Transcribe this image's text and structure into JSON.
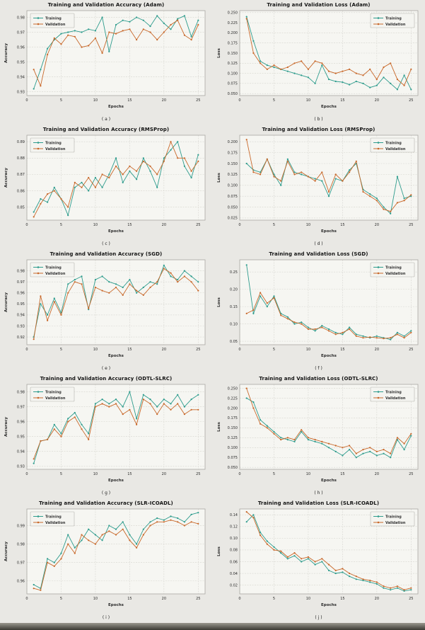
{
  "page": {
    "background": "#e9e8e4"
  },
  "colors": {
    "training": "#2e9c8d",
    "validation": "#c8682a",
    "grid": "#d7d6d0",
    "plot_bg": "#f6f6f2",
    "border": "#a9a8a2",
    "text": "#2b2b2b",
    "legend_bg": "#f4f4f0",
    "legend_border": "#b5b4ae"
  },
  "legend": {
    "training_label": "Training",
    "validation_label": "Validation"
  },
  "chart_data": [
    {
      "type": "line",
      "caption_id": "a",
      "caption": "( a )",
      "title": "Training and Validation Accuracy (Adam)",
      "xlabel": "Epochs",
      "ylabel": "Accuracy",
      "legend_position": "left",
      "xlim": [
        0,
        26
      ],
      "xticks": [
        0,
        5,
        10,
        15,
        20,
        25
      ],
      "ylim": [
        0.9275,
        0.9845
      ],
      "yticks": [
        0.93,
        0.94,
        0.95,
        0.96,
        0.97,
        0.98
      ],
      "ydecimals": 2,
      "series": [
        {
          "name": "Training",
          "color_key": "training",
          "values": [
            0.932,
            0.945,
            0.959,
            0.965,
            0.969,
            0.97,
            0.971,
            0.97,
            0.972,
            0.971,
            0.98,
            0.957,
            0.975,
            0.978,
            0.977,
            0.98,
            0.978,
            0.974,
            0.981,
            0.976,
            0.972,
            0.979,
            0.981,
            0.967,
            0.978
          ]
        },
        {
          "name": "Validation",
          "color_key": "validation",
          "values": [
            0.945,
            0.934,
            0.955,
            0.966,
            0.962,
            0.968,
            0.967,
            0.96,
            0.961,
            0.966,
            0.956,
            0.97,
            0.969,
            0.971,
            0.972,
            0.965,
            0.972,
            0.97,
            0.965,
            0.97,
            0.975,
            0.978,
            0.968,
            0.965,
            0.975
          ]
        }
      ]
    },
    {
      "type": "line",
      "caption_id": "b",
      "caption": "( b )",
      "title": "Training and Validation Loss (Adam)",
      "xlabel": "Epochs",
      "ylabel": "Loss",
      "legend_position": "right",
      "xlim": [
        0,
        26
      ],
      "xticks": [
        0,
        5,
        10,
        15,
        20,
        25
      ],
      "ylim": [
        0.045,
        0.255
      ],
      "yticks": [
        0.05,
        0.075,
        0.1,
        0.125,
        0.15,
        0.175,
        0.2,
        0.225,
        0.25
      ],
      "ydecimals": 3,
      "series": [
        {
          "name": "Training",
          "color_key": "training",
          "values": [
            0.24,
            0.18,
            0.13,
            0.12,
            0.115,
            0.11,
            0.105,
            0.1,
            0.095,
            0.09,
            0.075,
            0.12,
            0.085,
            0.08,
            0.078,
            0.072,
            0.08,
            0.075,
            0.065,
            0.07,
            0.09,
            0.075,
            0.06,
            0.095,
            0.06
          ]
        },
        {
          "name": "Validation",
          "color_key": "validation",
          "values": [
            0.235,
            0.15,
            0.125,
            0.11,
            0.12,
            0.11,
            0.115,
            0.125,
            0.13,
            0.11,
            0.13,
            0.125,
            0.105,
            0.1,
            0.105,
            0.11,
            0.1,
            0.095,
            0.11,
            0.085,
            0.115,
            0.125,
            0.085,
            0.07,
            0.11
          ]
        }
      ]
    },
    {
      "type": "line",
      "caption_id": "c",
      "caption": "( c )",
      "title": "Training and Validation Accuracy (RMSProp)",
      "xlabel": "Epochs",
      "ylabel": "Accuracy",
      "legend_position": "left",
      "xlim": [
        0,
        26
      ],
      "xticks": [
        0,
        5,
        10,
        15,
        20,
        25
      ],
      "ylim": [
        0.842,
        0.894
      ],
      "yticks": [
        0.85,
        0.86,
        0.87,
        0.88,
        0.89
      ],
      "ydecimals": 2,
      "series": [
        {
          "name": "Training",
          "color_key": "training",
          "values": [
            0.847,
            0.855,
            0.853,
            0.862,
            0.855,
            0.845,
            0.862,
            0.865,
            0.86,
            0.868,
            0.862,
            0.87,
            0.88,
            0.865,
            0.872,
            0.867,
            0.88,
            0.872,
            0.862,
            0.88,
            0.885,
            0.89,
            0.875,
            0.868,
            0.882
          ]
        },
        {
          "name": "Validation",
          "color_key": "validation",
          "values": [
            0.844,
            0.852,
            0.858,
            0.86,
            0.855,
            0.85,
            0.865,
            0.862,
            0.868,
            0.862,
            0.87,
            0.868,
            0.875,
            0.87,
            0.875,
            0.872,
            0.878,
            0.875,
            0.87,
            0.878,
            0.89,
            0.88,
            0.88,
            0.872,
            0.878
          ]
        }
      ]
    },
    {
      "type": "line",
      "caption_id": "d",
      "caption": "( d )",
      "title": "Training and Validation Loss (RMSProp)",
      "xlabel": "Epochs",
      "ylabel": "Loss",
      "legend_position": "right",
      "xlim": [
        0,
        26
      ],
      "xticks": [
        0,
        5,
        10,
        15,
        20,
        25
      ],
      "ylim": [
        0.02,
        0.215
      ],
      "yticks": [
        0.025,
        0.05,
        0.075,
        0.1,
        0.125,
        0.15,
        0.175,
        0.2
      ],
      "ydecimals": 3,
      "series": [
        {
          "name": "Training",
          "color_key": "training",
          "values": [
            0.15,
            0.135,
            0.13,
            0.16,
            0.125,
            0.1,
            0.16,
            0.13,
            0.125,
            0.12,
            0.115,
            0.11,
            0.075,
            0.115,
            0.11,
            0.135,
            0.15,
            0.09,
            0.08,
            0.07,
            0.05,
            0.035,
            0.12,
            0.07,
            0.075
          ]
        },
        {
          "name": "Validation",
          "color_key": "validation",
          "values": [
            0.205,
            0.13,
            0.125,
            0.16,
            0.12,
            0.11,
            0.155,
            0.125,
            0.13,
            0.12,
            0.11,
            0.13,
            0.085,
            0.125,
            0.11,
            0.13,
            0.155,
            0.085,
            0.075,
            0.065,
            0.045,
            0.04,
            0.06,
            0.065,
            0.078
          ]
        }
      ]
    },
    {
      "type": "line",
      "caption_id": "e",
      "caption": "( e )",
      "title": "Training and Validation Accuracy (SGD)",
      "xlabel": "Epochs",
      "ylabel": "Accuracy",
      "legend_position": "left",
      "xlim": [
        0,
        26
      ],
      "xticks": [
        0,
        5,
        10,
        15,
        20,
        25
      ],
      "ylim": [
        0.913,
        0.99
      ],
      "yticks": [
        0.92,
        0.93,
        0.94,
        0.95,
        0.96,
        0.97,
        0.98
      ],
      "ydecimals": 2,
      "series": [
        {
          "name": "Training",
          "color_key": "training",
          "values": [
            0.92,
            0.95,
            0.94,
            0.955,
            0.942,
            0.968,
            0.972,
            0.975,
            0.945,
            0.972,
            0.975,
            0.97,
            0.968,
            0.965,
            0.972,
            0.96,
            0.965,
            0.97,
            0.968,
            0.985,
            0.975,
            0.972,
            0.98,
            0.975,
            0.97
          ]
        },
        {
          "name": "Validation",
          "color_key": "validation",
          "values": [
            0.918,
            0.957,
            0.935,
            0.952,
            0.94,
            0.96,
            0.97,
            0.968,
            0.946,
            0.965,
            0.962,
            0.96,
            0.965,
            0.958,
            0.968,
            0.962,
            0.958,
            0.965,
            0.97,
            0.982,
            0.978,
            0.97,
            0.975,
            0.97,
            0.962
          ]
        }
      ]
    },
    {
      "type": "line",
      "caption_id": "f",
      "caption": "( f )",
      "title": "Training and Validation Loss (SGD)",
      "xlabel": "Epochs",
      "ylabel": "Loss",
      "legend_position": "right",
      "xlim": [
        0,
        26
      ],
      "xticks": [
        0,
        5,
        10,
        15,
        20,
        25
      ],
      "ylim": [
        0.04,
        0.285
      ],
      "yticks": [
        0.05,
        0.1,
        0.15,
        0.2,
        0.25
      ],
      "ydecimals": 2,
      "series": [
        {
          "name": "Training",
          "color_key": "training",
          "values": [
            0.27,
            0.13,
            0.18,
            0.15,
            0.18,
            0.13,
            0.12,
            0.1,
            0.105,
            0.09,
            0.08,
            0.095,
            0.085,
            0.075,
            0.07,
            0.09,
            0.07,
            0.065,
            0.06,
            0.065,
            0.06,
            0.055,
            0.075,
            0.065,
            0.08
          ]
        },
        {
          "name": "Validation",
          "color_key": "validation",
          "values": [
            0.13,
            0.14,
            0.19,
            0.16,
            0.175,
            0.125,
            0.115,
            0.105,
            0.1,
            0.085,
            0.085,
            0.09,
            0.08,
            0.07,
            0.075,
            0.085,
            0.065,
            0.06,
            0.062,
            0.06,
            0.058,
            0.06,
            0.07,
            0.06,
            0.075
          ]
        }
      ]
    },
    {
      "type": "line",
      "caption_id": "g",
      "caption": "( g )",
      "title": "Training and Validation Accuracy (ODTL-SLRC)",
      "xlabel": "Epochs",
      "ylabel": "Accuracy",
      "legend_position": "left",
      "xlim": [
        0,
        26
      ],
      "xticks": [
        0,
        5,
        10,
        15,
        20,
        25
      ],
      "ylim": [
        0.928,
        0.985
      ],
      "yticks": [
        0.93,
        0.94,
        0.95,
        0.96,
        0.97,
        0.98
      ],
      "ydecimals": 2,
      "series": [
        {
          "name": "Training",
          "color_key": "training",
          "values": [
            0.932,
            0.947,
            0.948,
            0.958,
            0.952,
            0.962,
            0.966,
            0.958,
            0.952,
            0.972,
            0.975,
            0.972,
            0.975,
            0.97,
            0.98,
            0.962,
            0.978,
            0.975,
            0.97,
            0.975,
            0.972,
            0.978,
            0.97,
            0.975,
            0.978
          ]
        },
        {
          "name": "Validation",
          "color_key": "validation",
          "values": [
            0.935,
            0.947,
            0.948,
            0.955,
            0.95,
            0.96,
            0.963,
            0.955,
            0.948,
            0.97,
            0.972,
            0.97,
            0.972,
            0.965,
            0.968,
            0.958,
            0.975,
            0.972,
            0.965,
            0.972,
            0.968,
            0.972,
            0.965,
            0.968,
            0.968
          ]
        }
      ]
    },
    {
      "type": "line",
      "caption_id": "h",
      "caption": "( h )",
      "title": "Training and Validation Loss (ODTL-SLRC)",
      "xlabel": "Epochs",
      "ylabel": "Loss",
      "legend_position": "right",
      "xlim": [
        0,
        26
      ],
      "xticks": [
        0,
        5,
        10,
        15,
        20,
        25
      ],
      "ylim": [
        0.045,
        0.26
      ],
      "yticks": [
        0.05,
        0.075,
        0.1,
        0.125,
        0.15,
        0.175,
        0.2,
        0.225,
        0.25
      ],
      "ydecimals": 3,
      "series": [
        {
          "name": "Training",
          "color_key": "training",
          "values": [
            0.225,
            0.215,
            0.17,
            0.155,
            0.14,
            0.125,
            0.12,
            0.115,
            0.14,
            0.12,
            0.115,
            0.11,
            0.1,
            0.09,
            0.08,
            0.095,
            0.075,
            0.085,
            0.09,
            0.08,
            0.085,
            0.075,
            0.12,
            0.095,
            0.13
          ]
        },
        {
          "name": "Validation",
          "color_key": "validation",
          "values": [
            0.25,
            0.2,
            0.16,
            0.15,
            0.135,
            0.12,
            0.125,
            0.12,
            0.145,
            0.125,
            0.12,
            0.115,
            0.11,
            0.105,
            0.1,
            0.105,
            0.085,
            0.095,
            0.1,
            0.09,
            0.095,
            0.085,
            0.125,
            0.11,
            0.135
          ]
        }
      ]
    },
    {
      "type": "line",
      "caption_id": "i",
      "caption": "( i )",
      "title": "Training and Validation Accuracy (SLR-ICOADL)",
      "xlabel": "Epochs",
      "ylabel": "Accuracy",
      "legend_position": "left",
      "xlim": [
        0,
        26
      ],
      "xticks": [
        0,
        5,
        10,
        15,
        20,
        25
      ],
      "ylim": [
        0.953,
        0.999
      ],
      "yticks": [
        0.96,
        0.97,
        0.98,
        0.99
      ],
      "ydecimals": 2,
      "series": [
        {
          "name": "Training",
          "color_key": "training",
          "values": [
            0.958,
            0.956,
            0.972,
            0.97,
            0.975,
            0.985,
            0.978,
            0.982,
            0.988,
            0.985,
            0.982,
            0.99,
            0.988,
            0.992,
            0.985,
            0.98,
            0.988,
            0.992,
            0.994,
            0.993,
            0.995,
            0.994,
            0.992,
            0.996,
            0.997
          ]
        },
        {
          "name": "Validation",
          "color_key": "validation",
          "values": [
            0.956,
            0.955,
            0.97,
            0.968,
            0.972,
            0.98,
            0.975,
            0.985,
            0.982,
            0.98,
            0.985,
            0.987,
            0.985,
            0.988,
            0.982,
            0.978,
            0.985,
            0.99,
            0.992,
            0.992,
            0.993,
            0.992,
            0.99,
            0.992,
            0.991
          ]
        }
      ]
    },
    {
      "type": "line",
      "caption_id": "j",
      "caption": "( j )",
      "title": "Training and Validation Loss (SLR-ICOADL)",
      "xlabel": "Epochs",
      "ylabel": "Loss",
      "legend_position": "right",
      "xlim": [
        0,
        26
      ],
      "xticks": [
        0,
        5,
        10,
        15,
        20,
        25
      ],
      "ylim": [
        0.005,
        0.15
      ],
      "yticks": [
        0.02,
        0.04,
        0.06,
        0.08,
        0.1,
        0.12,
        0.14
      ],
      "ydecimals": 2,
      "series": [
        {
          "name": "Training",
          "color_key": "training",
          "values": [
            0.128,
            0.14,
            0.11,
            0.095,
            0.085,
            0.075,
            0.065,
            0.07,
            0.06,
            0.065,
            0.055,
            0.06,
            0.045,
            0.04,
            0.042,
            0.035,
            0.03,
            0.028,
            0.025,
            0.022,
            0.015,
            0.012,
            0.015,
            0.01,
            0.012
          ]
        },
        {
          "name": "Validation",
          "color_key": "validation",
          "values": [
            0.145,
            0.135,
            0.105,
            0.09,
            0.08,
            0.078,
            0.068,
            0.075,
            0.065,
            0.068,
            0.06,
            0.065,
            0.055,
            0.045,
            0.048,
            0.04,
            0.035,
            0.03,
            0.028,
            0.025,
            0.018,
            0.015,
            0.018,
            0.012,
            0.015
          ]
        }
      ]
    }
  ]
}
